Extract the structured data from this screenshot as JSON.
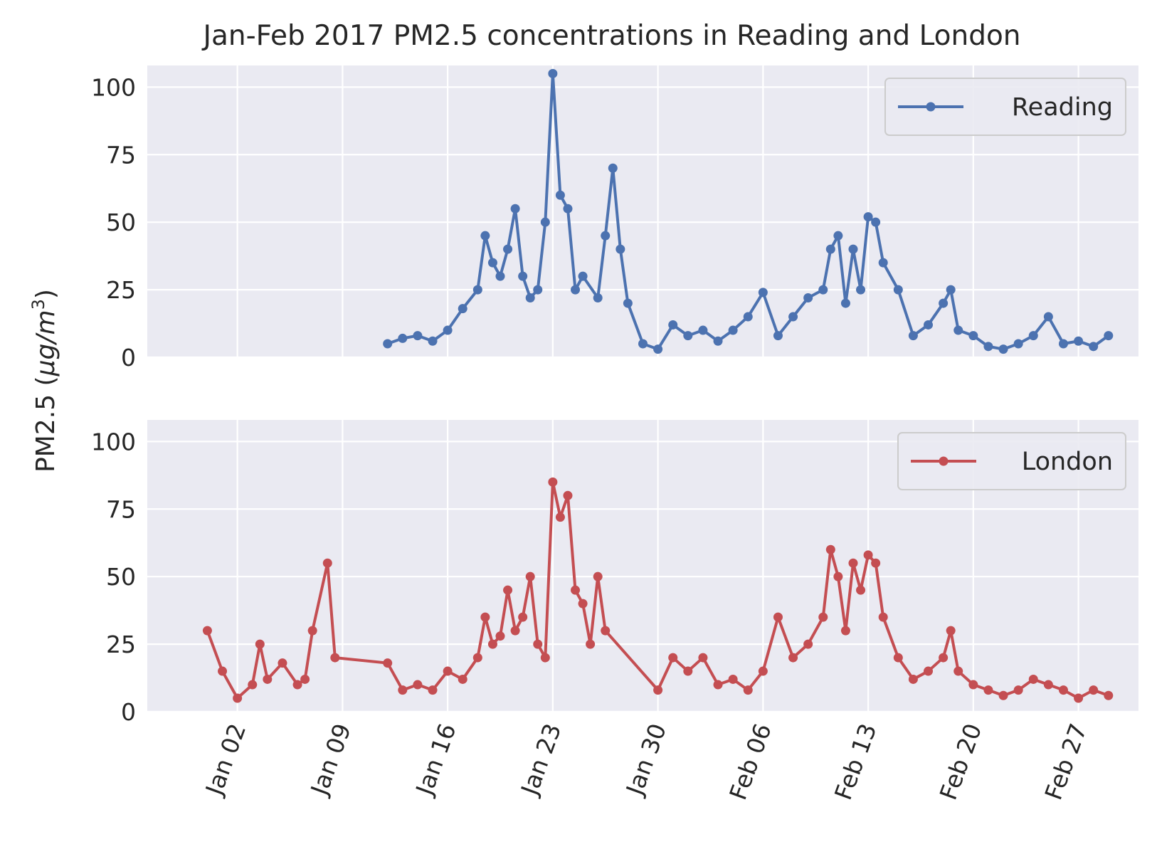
{
  "chart_data": [
    {
      "type": "line",
      "title": "Jan-Feb 2017 PM2.5 concentrations in Reading and London",
      "ylabel": "PM2.5 (µg/m³)",
      "ylabel_parts": {
        "main": "PM2.5 (",
        "mu": "µ",
        "g": "g",
        "slash": "/",
        "m": "m",
        "sup": "3",
        "close": ")"
      },
      "ylim": [
        0,
        108
      ],
      "yticks": [
        0,
        25,
        50,
        75,
        100
      ],
      "xlim": [
        "2016-12-27",
        "2017-03-03"
      ],
      "xticks": [
        "Jan 02",
        "Jan 09",
        "Jan 16",
        "Jan 23",
        "Jan 30",
        "Feb 06",
        "Feb 13",
        "Feb 20",
        "Feb 27"
      ],
      "grid": true,
      "legend_placement": "top-right",
      "series": [
        {
          "name": "Reading",
          "color": "#4c72b0",
          "x": [
            "2017-01-12",
            "2017-01-13",
            "2017-01-14",
            "2017-01-15",
            "2017-01-16",
            "2017-01-17",
            "2017-01-18",
            "2017-01-18T12:00",
            "2017-01-19",
            "2017-01-19T12:00",
            "2017-01-20",
            "2017-01-20T12:00",
            "2017-01-21",
            "2017-01-21T12:00",
            "2017-01-22",
            "2017-01-22T12:00",
            "2017-01-23",
            "2017-01-23T12:00",
            "2017-01-24",
            "2017-01-24T12:00",
            "2017-01-25",
            "2017-01-26",
            "2017-01-26T12:00",
            "2017-01-27",
            "2017-01-27T12:00",
            "2017-01-28",
            "2017-01-29",
            "2017-01-30",
            "2017-01-31",
            "2017-02-01",
            "2017-02-02",
            "2017-02-03",
            "2017-02-04",
            "2017-02-05",
            "2017-02-06",
            "2017-02-07",
            "2017-02-08",
            "2017-02-09",
            "2017-02-10",
            "2017-02-10T12:00",
            "2017-02-11",
            "2017-02-11T12:00",
            "2017-02-12",
            "2017-02-12T12:00",
            "2017-02-13",
            "2017-02-13T12:00",
            "2017-02-14",
            "2017-02-15",
            "2017-02-16",
            "2017-02-17",
            "2017-02-18",
            "2017-02-18T12:00",
            "2017-02-19",
            "2017-02-20",
            "2017-02-21",
            "2017-02-22",
            "2017-02-23",
            "2017-02-24",
            "2017-02-25",
            "2017-02-26",
            "2017-02-27",
            "2017-02-28",
            "2017-03-01"
          ],
          "values": [
            5,
            7,
            8,
            6,
            10,
            18,
            25,
            45,
            35,
            30,
            40,
            55,
            30,
            22,
            25,
            50,
            105,
            60,
            55,
            25,
            30,
            22,
            45,
            70,
            40,
            20,
            5,
            3,
            12,
            8,
            10,
            6,
            10,
            15,
            24,
            8,
            15,
            22,
            25,
            40,
            45,
            20,
            40,
            25,
            52,
            50,
            35,
            25,
            8,
            12,
            20,
            25,
            10,
            8,
            4,
            3,
            5,
            8,
            15,
            5,
            6,
            4,
            8
          ]
        },
        {
          "name": "London",
          "color": "#c44e52",
          "x": [
            "2016-12-31",
            "2017-01-01",
            "2017-01-02",
            "2017-01-03",
            "2017-01-03T12:00",
            "2017-01-04",
            "2017-01-05",
            "2017-01-06",
            "2017-01-06T12:00",
            "2017-01-07",
            "2017-01-08",
            "2017-01-08T12:00",
            "2017-01-12",
            "2017-01-13",
            "2017-01-14",
            "2017-01-15",
            "2017-01-16",
            "2017-01-17",
            "2017-01-18",
            "2017-01-18T12:00",
            "2017-01-19",
            "2017-01-19T12:00",
            "2017-01-20",
            "2017-01-20T12:00",
            "2017-01-21",
            "2017-01-21T12:00",
            "2017-01-22",
            "2017-01-22T12:00",
            "2017-01-23",
            "2017-01-23T12:00",
            "2017-01-24",
            "2017-01-24T12:00",
            "2017-01-25",
            "2017-01-25T12:00",
            "2017-01-26",
            "2017-01-26T12:00",
            "2017-01-30",
            "2017-01-31",
            "2017-02-01",
            "2017-02-02",
            "2017-02-03",
            "2017-02-04",
            "2017-02-05",
            "2017-02-06",
            "2017-02-07",
            "2017-02-08",
            "2017-02-09",
            "2017-02-10",
            "2017-02-10T12:00",
            "2017-02-11",
            "2017-02-11T12:00",
            "2017-02-12",
            "2017-02-12T12:00",
            "2017-02-13",
            "2017-02-13T12:00",
            "2017-02-14",
            "2017-02-15",
            "2017-02-16",
            "2017-02-17",
            "2017-02-18",
            "2017-02-18T12:00",
            "2017-02-19",
            "2017-02-20",
            "2017-02-21",
            "2017-02-22",
            "2017-02-23",
            "2017-02-24",
            "2017-02-25",
            "2017-02-26",
            "2017-02-27",
            "2017-02-28",
            "2017-03-01"
          ],
          "values": [
            30,
            15,
            5,
            10,
            25,
            12,
            18,
            10,
            12,
            30,
            55,
            20,
            18,
            8,
            10,
            8,
            15,
            12,
            20,
            35,
            25,
            28,
            45,
            30,
            35,
            50,
            25,
            20,
            85,
            72,
            80,
            45,
            40,
            25,
            50,
            30,
            8,
            20,
            15,
            20,
            10,
            12,
            8,
            15,
            35,
            20,
            25,
            35,
            60,
            50,
            30,
            55,
            45,
            58,
            55,
            35,
            20,
            12,
            15,
            20,
            30,
            15,
            10,
            8,
            6,
            8,
            12,
            10,
            8,
            5,
            8,
            6
          ]
        }
      ]
    }
  ]
}
